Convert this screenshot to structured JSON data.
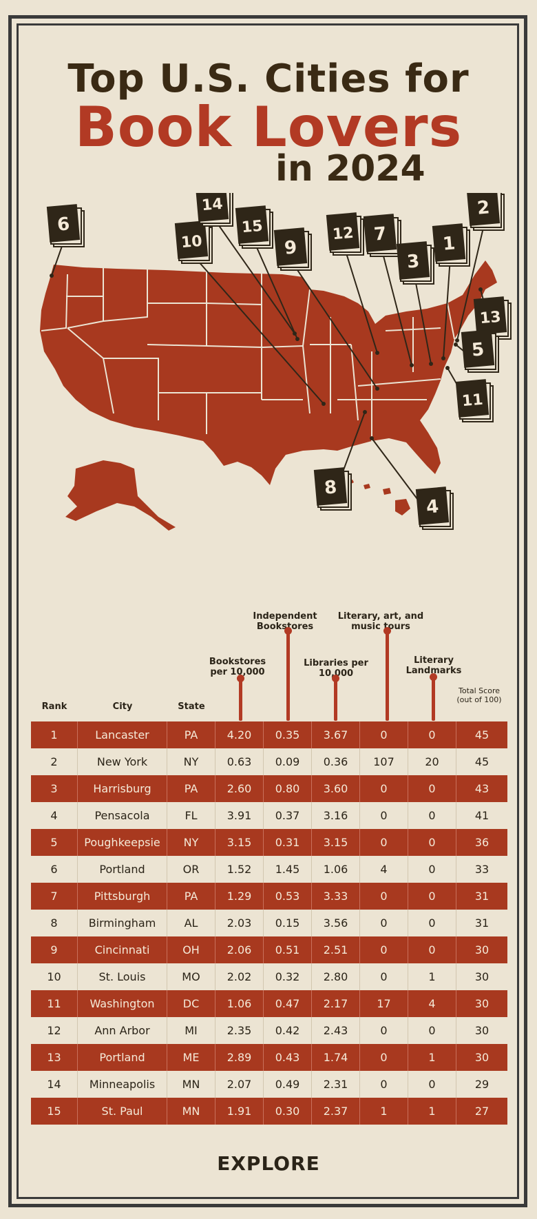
{
  "title": {
    "line1": "Top U.S. Cities for",
    "line2": "Book Lovers",
    "line3": "in 2024"
  },
  "map": {
    "fill_color": "#a8391f",
    "border_color": "#ece4d3",
    "book_color": "#2f2618",
    "markers": [
      {
        "rank": "6"
      },
      {
        "rank": "10"
      },
      {
        "rank": "14"
      },
      {
        "rank": "15"
      },
      {
        "rank": "9"
      },
      {
        "rank": "12"
      },
      {
        "rank": "7"
      },
      {
        "rank": "3"
      },
      {
        "rank": "1"
      },
      {
        "rank": "2"
      },
      {
        "rank": "13"
      },
      {
        "rank": "5"
      },
      {
        "rank": "11"
      },
      {
        "rank": "8"
      },
      {
        "rank": "4"
      }
    ]
  },
  "column_headers": {
    "rank": "Rank",
    "city": "City",
    "state": "State",
    "bookstores": "Bookstores per 10,000",
    "independent": "Independent Bookstores",
    "libraries": "Libraries per 10,000",
    "tours": "Literary, art, and music tours",
    "landmarks": "Literary Landmarks",
    "total": "Total Score (out of 100)"
  },
  "rows": [
    {
      "rank": "1",
      "city": "Lancaster",
      "state": "PA",
      "bookstores": "4.20",
      "independent": "0.35",
      "libraries": "3.67",
      "tours": "0",
      "landmarks": "0",
      "total": "45"
    },
    {
      "rank": "2",
      "city": "New York",
      "state": "NY",
      "bookstores": "0.63",
      "independent": "0.09",
      "libraries": "0.36",
      "tours": "107",
      "landmarks": "20",
      "total": "45"
    },
    {
      "rank": "3",
      "city": "Harrisburg",
      "state": "PA",
      "bookstores": "2.60",
      "independent": "0.80",
      "libraries": "3.60",
      "tours": "0",
      "landmarks": "0",
      "total": "43"
    },
    {
      "rank": "4",
      "city": "Pensacola",
      "state": "FL",
      "bookstores": "3.91",
      "independent": "0.37",
      "libraries": "3.16",
      "tours": "0",
      "landmarks": "0",
      "total": "41"
    },
    {
      "rank": "5",
      "city": "Poughkeepsie",
      "state": "NY",
      "bookstores": "3.15",
      "independent": "0.31",
      "libraries": "3.15",
      "tours": "0",
      "landmarks": "0",
      "total": "36"
    },
    {
      "rank": "6",
      "city": "Portland",
      "state": "OR",
      "bookstores": "1.52",
      "independent": "1.45",
      "libraries": "1.06",
      "tours": "4",
      "landmarks": "0",
      "total": "33"
    },
    {
      "rank": "7",
      "city": "Pittsburgh",
      "state": "PA",
      "bookstores": "1.29",
      "independent": "0.53",
      "libraries": "3.33",
      "tours": "0",
      "landmarks": "0",
      "total": "31"
    },
    {
      "rank": "8",
      "city": "Birmingham",
      "state": "AL",
      "bookstores": "2.03",
      "independent": "0.15",
      "libraries": "3.56",
      "tours": "0",
      "landmarks": "0",
      "total": "31"
    },
    {
      "rank": "9",
      "city": "Cincinnati",
      "state": "OH",
      "bookstores": "2.06",
      "independent": "0.51",
      "libraries": "2.51",
      "tours": "0",
      "landmarks": "0",
      "total": "30"
    },
    {
      "rank": "10",
      "city": "St. Louis",
      "state": "MO",
      "bookstores": "2.02",
      "independent": "0.32",
      "libraries": "2.80",
      "tours": "0",
      "landmarks": "1",
      "total": "30"
    },
    {
      "rank": "11",
      "city": "Washington",
      "state": "DC",
      "bookstores": "1.06",
      "independent": "0.47",
      "libraries": "2.17",
      "tours": "17",
      "landmarks": "4",
      "total": "30"
    },
    {
      "rank": "12",
      "city": "Ann Arbor",
      "state": "MI",
      "bookstores": "2.35",
      "independent": "0.42",
      "libraries": "2.43",
      "tours": "0",
      "landmarks": "0",
      "total": "30"
    },
    {
      "rank": "13",
      "city": "Portland",
      "state": "ME",
      "bookstores": "2.89",
      "independent": "0.43",
      "libraries": "1.74",
      "tours": "0",
      "landmarks": "1",
      "total": "30"
    },
    {
      "rank": "14",
      "city": "Minneapolis",
      "state": "MN",
      "bookstores": "2.07",
      "independent": "0.49",
      "libraries": "2.31",
      "tours": "0",
      "landmarks": "0",
      "total": "29"
    },
    {
      "rank": "15",
      "city": "St. Paul",
      "state": "MN",
      "bookstores": "1.91",
      "independent": "0.30",
      "libraries": "2.37",
      "tours": "1",
      "landmarks": "1",
      "total": "27"
    }
  ],
  "footer": {
    "logo": "EXPLORE"
  }
}
